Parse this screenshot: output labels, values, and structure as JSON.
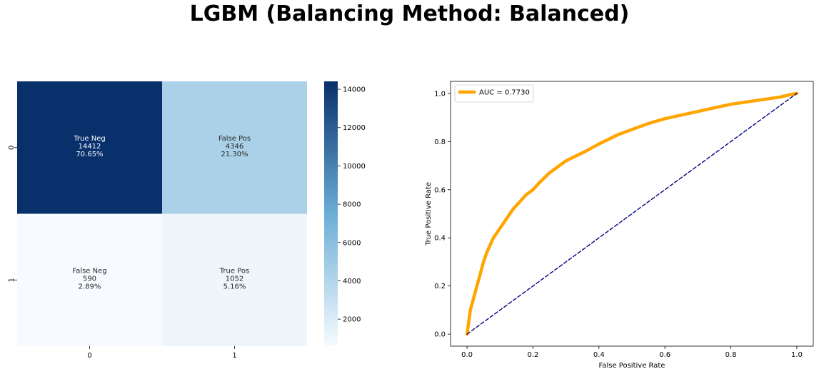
{
  "title": "LGBM (Balancing Method: Balanced)",
  "chart_data": [
    {
      "type": "heatmap",
      "title": "",
      "xlabel": "",
      "ylabel": "",
      "x_categories": [
        "0",
        "1"
      ],
      "y_categories": [
        "0",
        "1"
      ],
      "values": [
        [
          14412,
          4346
        ],
        [
          590,
          1052
        ]
      ],
      "cell_labels": [
        [
          [
            "True Neg",
            "14412",
            "70.65%"
          ],
          [
            "False Pos",
            "4346",
            "21.30%"
          ]
        ],
        [
          [
            "False Neg",
            "590",
            "2.89%"
          ],
          [
            "True Pos",
            "1052",
            "5.16%"
          ]
        ]
      ],
      "colormap": "Blues",
      "colors": {
        "low": "#f7fbff",
        "mid": "#6baed6",
        "high": "#08306b"
      },
      "colorbar": {
        "range": [
          590,
          14412
        ],
        "ticks": [
          2000,
          4000,
          6000,
          8000,
          10000,
          12000,
          14000
        ]
      }
    },
    {
      "type": "line",
      "title": "",
      "xlabel": "False Positive Rate",
      "ylabel": "True Positive Rate",
      "xlim": [
        -0.05,
        1.05
      ],
      "ylim": [
        -0.05,
        1.05
      ],
      "xticks": [
        "0.0",
        "0.2",
        "0.4",
        "0.6",
        "0.8",
        "1.0"
      ],
      "yticks": [
        "0.0",
        "0.2",
        "0.4",
        "0.6",
        "0.8",
        "1.0"
      ],
      "legend": "upper left",
      "series": [
        {
          "name": "AUC = 0.7730",
          "color": "#ffa500",
          "x": [
            0.0,
            0.005,
            0.01,
            0.02,
            0.03,
            0.04,
            0.05,
            0.06,
            0.07,
            0.08,
            0.1,
            0.12,
            0.14,
            0.16,
            0.18,
            0.2,
            0.22,
            0.25,
            0.28,
            0.3,
            0.33,
            0.36,
            0.4,
            0.43,
            0.46,
            0.5,
            0.55,
            0.6,
            0.65,
            0.7,
            0.75,
            0.8,
            0.85,
            0.9,
            0.95,
            0.98,
            1.0
          ],
          "y": [
            0.0,
            0.05,
            0.1,
            0.15,
            0.2,
            0.25,
            0.3,
            0.34,
            0.37,
            0.4,
            0.44,
            0.48,
            0.52,
            0.55,
            0.58,
            0.6,
            0.63,
            0.67,
            0.7,
            0.72,
            0.74,
            0.76,
            0.79,
            0.81,
            0.83,
            0.85,
            0.875,
            0.895,
            0.91,
            0.925,
            0.94,
            0.955,
            0.965,
            0.975,
            0.985,
            0.995,
            1.0
          ]
        },
        {
          "name": "",
          "color": "#000080",
          "dashed": true,
          "x": [
            0.0,
            1.0
          ],
          "y": [
            0.0,
            1.0
          ]
        }
      ]
    }
  ]
}
